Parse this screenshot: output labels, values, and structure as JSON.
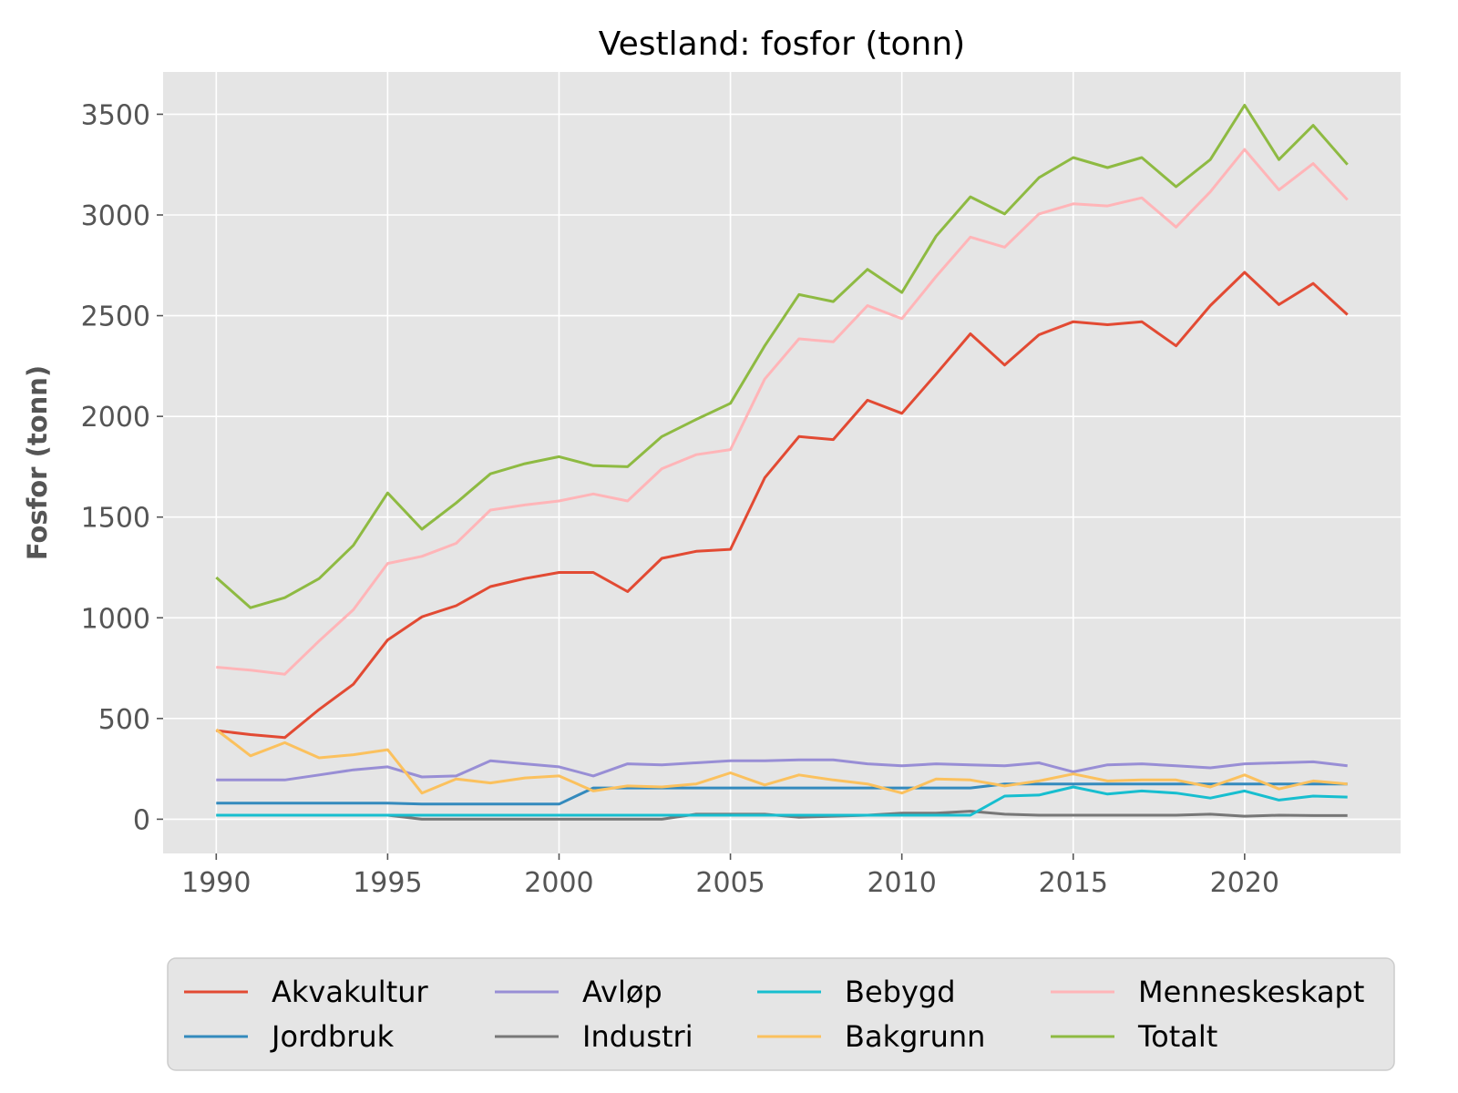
{
  "chart_data": {
    "type": "line",
    "title": "Vestland: fosfor (tonn)",
    "xlabel": "",
    "ylabel": "Fosfor (tonn)",
    "xlim": [
      1988.45,
      2024.55
    ],
    "ylim": [
      -170,
      3710
    ],
    "xticks": [
      1990,
      1995,
      2000,
      2005,
      2010,
      2015,
      2020
    ],
    "yticks": [
      0,
      500,
      1000,
      1500,
      2000,
      2500,
      3000,
      3500
    ],
    "grid": true,
    "legend_position": "bottom",
    "x": [
      1990,
      1991,
      1992,
      1993,
      1994,
      1995,
      1996,
      1997,
      1998,
      1999,
      2000,
      2001,
      2002,
      2003,
      2004,
      2005,
      2006,
      2007,
      2008,
      2009,
      2010,
      2011,
      2012,
      2013,
      2014,
      2015,
      2016,
      2017,
      2018,
      2019,
      2020,
      2021,
      2022,
      2023
    ],
    "series": [
      {
        "name": "Akvakultur",
        "color": "#E24A33",
        "values": [
          440,
          420,
          405,
          545,
          670,
          890,
          1005,
          1060,
          1155,
          1195,
          1225,
          1225,
          1130,
          1295,
          1330,
          1340,
          1695,
          1900,
          1885,
          2080,
          2015,
          2210,
          2410,
          2255,
          2405,
          2470,
          2455,
          2470,
          2350,
          2550,
          2715,
          2555,
          2660,
          2505
        ]
      },
      {
        "name": "Jordbruk",
        "color": "#348ABD",
        "values": [
          80,
          80,
          80,
          80,
          80,
          80,
          75,
          75,
          75,
          75,
          75,
          155,
          155,
          155,
          155,
          155,
          155,
          155,
          155,
          155,
          155,
          155,
          155,
          175,
          175,
          175,
          175,
          175,
          175,
          175,
          175,
          175,
          175,
          175
        ]
      },
      {
        "name": "Avløp",
        "color": "#988ED5",
        "values": [
          195,
          195,
          195,
          220,
          245,
          260,
          210,
          215,
          290,
          275,
          260,
          215,
          275,
          270,
          280,
          290,
          290,
          295,
          295,
          275,
          265,
          275,
          270,
          265,
          280,
          235,
          270,
          275,
          265,
          255,
          275,
          280,
          285,
          265
        ]
      },
      {
        "name": "Industri",
        "color": "#777777",
        "values": [
          20,
          20,
          20,
          20,
          20,
          20,
          0,
          0,
          0,
          0,
          0,
          0,
          0,
          0,
          25,
          25,
          25,
          10,
          15,
          20,
          30,
          30,
          40,
          25,
          20,
          20,
          20,
          20,
          20,
          25,
          15,
          20,
          18,
          18
        ]
      },
      {
        "name": "Bebygd",
        "color": "#17BECF",
        "values": [
          20,
          20,
          20,
          20,
          20,
          20,
          20,
          20,
          20,
          20,
          20,
          20,
          20,
          20,
          20,
          20,
          20,
          20,
          20,
          20,
          20,
          20,
          20,
          115,
          120,
          160,
          125,
          140,
          130,
          105,
          140,
          95,
          115,
          110
        ]
      },
      {
        "name": "Bakgrunn",
        "color": "#FBC15E",
        "values": [
          445,
          315,
          380,
          305,
          320,
          345,
          130,
          200,
          180,
          205,
          215,
          140,
          165,
          160,
          175,
          230,
          170,
          220,
          195,
          175,
          130,
          200,
          195,
          165,
          190,
          225,
          190,
          195,
          195,
          160,
          220,
          150,
          190,
          175
        ]
      },
      {
        "name": "Menneskeskapt",
        "color": "#FFB5B8",
        "values": [
          755,
          740,
          720,
          885,
          1040,
          1270,
          1305,
          1370,
          1535,
          1560,
          1580,
          1615,
          1580,
          1740,
          1810,
          1835,
          2185,
          2385,
          2370,
          2550,
          2485,
          2695,
          2890,
          2840,
          3005,
          3055,
          3045,
          3085,
          2940,
          3115,
          3325,
          3125,
          3255,
          3075
        ]
      },
      {
        "name": "Totalt",
        "color": "#8EBA42",
        "values": [
          1200,
          1050,
          1100,
          1195,
          1360,
          1620,
          1440,
          1570,
          1715,
          1765,
          1800,
          1755,
          1750,
          1900,
          1985,
          2065,
          2350,
          2605,
          2570,
          2730,
          2615,
          2895,
          3090,
          3005,
          3185,
          3285,
          3235,
          3285,
          3140,
          3275,
          3545,
          3275,
          3445,
          3250
        ]
      }
    ]
  }
}
